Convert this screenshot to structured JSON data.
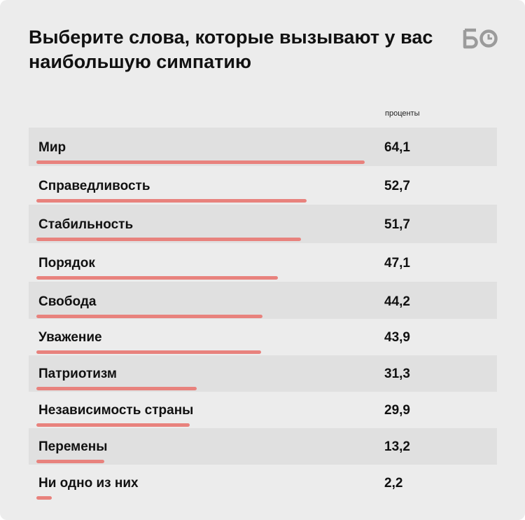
{
  "header": {
    "title": "Выберите слова, которые вызывают у вас наибольшую симпатию",
    "logo_text": "БО"
  },
  "colors": {
    "background": "#ececec",
    "row_shade": "#e0e0e0",
    "bar": "#e8827d",
    "logo": "#9b9b9b"
  },
  "chart_data": {
    "type": "bar",
    "orientation": "horizontal",
    "unit_label": "проценты",
    "categories": [
      "Мир",
      "Справедливость",
      "Стабильность",
      "Порядок",
      "Свобода",
      "Уважение",
      "Патриотизм",
      "Независимость страны",
      "Перемены",
      "Ни одно из них"
    ],
    "values": [
      64.1,
      52.7,
      51.7,
      47.1,
      44.2,
      43.9,
      31.3,
      29.9,
      13.2,
      2.2
    ],
    "value_labels": [
      "64,1",
      "52,7",
      "51,7",
      "47,1",
      "44,2",
      "43,9",
      "31,3",
      "29,9",
      "13,2",
      "2,2"
    ],
    "xlim": [
      0,
      64.1
    ]
  }
}
